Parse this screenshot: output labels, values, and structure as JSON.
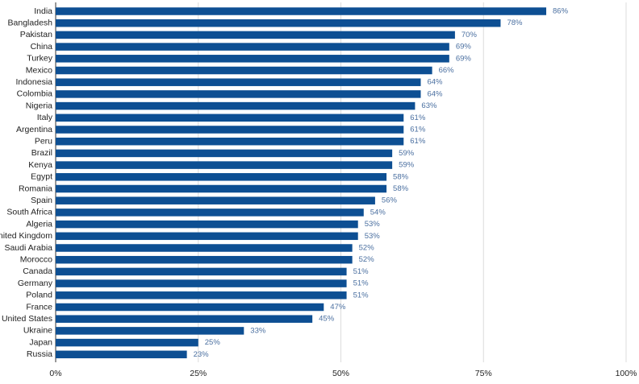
{
  "colors": {
    "bar": "#0d4f93",
    "value_label": "#4a6fa0",
    "grid": "#dcdcdc",
    "text": "#222222"
  },
  "chart_data": {
    "type": "bar",
    "orientation": "horizontal",
    "categories": [
      "India",
      "Bangladesh",
      "Pakistan",
      "China",
      "Turkey",
      "Mexico",
      "Indonesia",
      "Colombia",
      "Nigeria",
      "Italy",
      "Argentina",
      "Peru",
      "Brazil",
      "Kenya",
      "Egypt",
      "Romania",
      "Spain",
      "South Africa",
      "Algeria",
      "nited Kingdom",
      "Saudi Arabia",
      "Morocco",
      "Canada",
      "Germany",
      "Poland",
      "France",
      "United States",
      "Ukraine",
      "Japan",
      "Russia"
    ],
    "values": [
      86,
      78,
      70,
      69,
      69,
      66,
      64,
      64,
      63,
      61,
      61,
      61,
      59,
      59,
      58,
      58,
      56,
      54,
      53,
      53,
      52,
      52,
      51,
      51,
      51,
      47,
      45,
      33,
      25,
      23
    ],
    "value_labels": [
      "86%",
      "78%",
      "70%",
      "69%",
      "69%",
      "66%",
      "64%",
      "64%",
      "63%",
      "61%",
      "61%",
      "61%",
      "59%",
      "59%",
      "58%",
      "58%",
      "56%",
      "54%",
      "53%",
      "53%",
      "52%",
      "52%",
      "51%",
      "51%",
      "51%",
      "47%",
      "45%",
      "33%",
      "25%",
      "23%"
    ],
    "x_ticks": [
      0,
      25,
      50,
      75,
      100
    ],
    "x_tick_labels": [
      "0%",
      "25%",
      "50%",
      "75%",
      "100%"
    ],
    "xlim": [
      0,
      100
    ],
    "grid": "vertical",
    "legend": "none"
  }
}
